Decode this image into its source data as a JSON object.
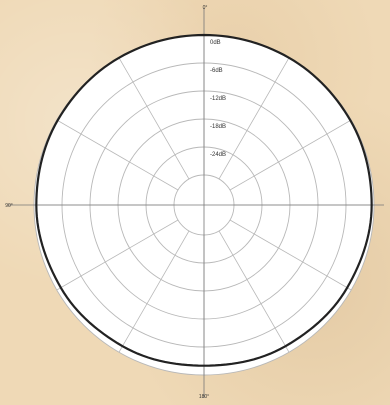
{
  "chart_data": {
    "type": "polar",
    "title": "",
    "rings_db": [
      "0dB",
      "-6dB",
      "-12dB",
      "-18dB",
      "-24dB"
    ],
    "ring_labels": [
      "0dB",
      "-6dB",
      "-12dB",
      "-18dB",
      "-24dB"
    ],
    "angle_labels": [
      "0°",
      "90°",
      "180°"
    ],
    "spoke_step_deg": 30,
    "series": [
      {
        "pattern": "omnidirectional",
        "angles_deg": [
          0,
          30,
          60,
          90,
          120,
          150,
          180,
          210,
          240,
          270,
          300,
          330
        ],
        "values_db": [
          0,
          0,
          -0.2,
          -0.5,
          -1.0,
          -1.5,
          -2.0,
          -1.5,
          -1.0,
          -0.5,
          -0.2,
          0
        ],
        "color": "#222222"
      }
    ],
    "colors": {
      "disc": "#ffffff",
      "grid": "#b8b8b8",
      "curve": "#222222",
      "axis": "#777777"
    }
  }
}
